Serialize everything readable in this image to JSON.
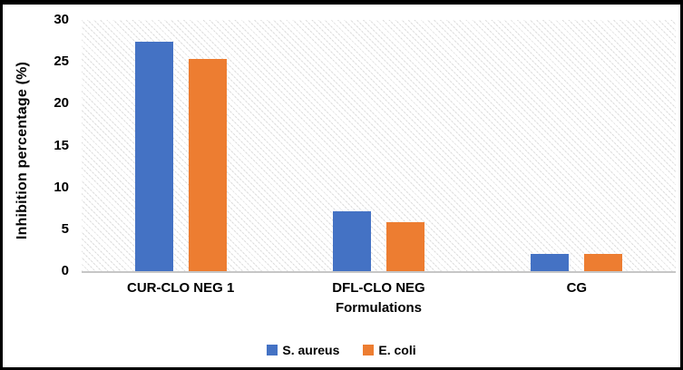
{
  "figure": {
    "background": "#ffffff",
    "border_color": "#000000"
  },
  "chart_data": {
    "type": "bar",
    "title": "",
    "categories": [
      "CUR-CLO NEG 1",
      "DFL-CLO NEG",
      "CG"
    ],
    "series": [
      {
        "name": "S. aureus",
        "color": "#4472C4",
        "values": [
          27.4,
          7.1,
          2.1
        ]
      },
      {
        "name": "E. coli",
        "color": "#ED7D31",
        "values": [
          25.3,
          5.8,
          2.1
        ]
      }
    ],
    "xlabel": "Formulations",
    "ylabel": "Inhibition percentage (%)",
    "ylim": [
      0,
      30
    ],
    "yticks": [
      0,
      5,
      10,
      15,
      20,
      25,
      30
    ],
    "grid": false,
    "legend_position": "bottom",
    "plot_area_fill": "diagonal-hatch",
    "axis_line_color": "#c6c6c6"
  }
}
